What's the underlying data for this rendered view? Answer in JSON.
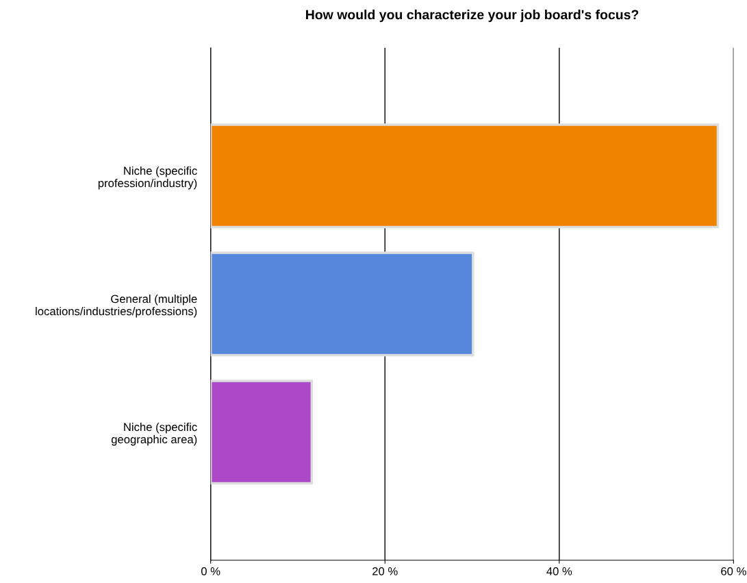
{
  "chart_data": {
    "type": "bar",
    "orientation": "horizontal",
    "title": "How would you characterize your job board's focus?",
    "categories": [
      "Niche (specific\nprofession/industry)",
      "General (multiple\nlocations/industries/professions)",
      "Niche (specific\ngeographic area)"
    ],
    "values": [
      58.2,
      30.1,
      11.6
    ],
    "colors": [
      "#f08400",
      "#5587dd",
      "#ad48c8"
    ],
    "xlim": [
      0,
      60
    ],
    "xticks": [
      {
        "value": 0,
        "label": "0 %"
      },
      {
        "value": 20,
        "label": "20 %"
      },
      {
        "value": 40,
        "label": "40 %"
      },
      {
        "value": 60,
        "label": "60 %"
      }
    ],
    "grid": "x"
  }
}
